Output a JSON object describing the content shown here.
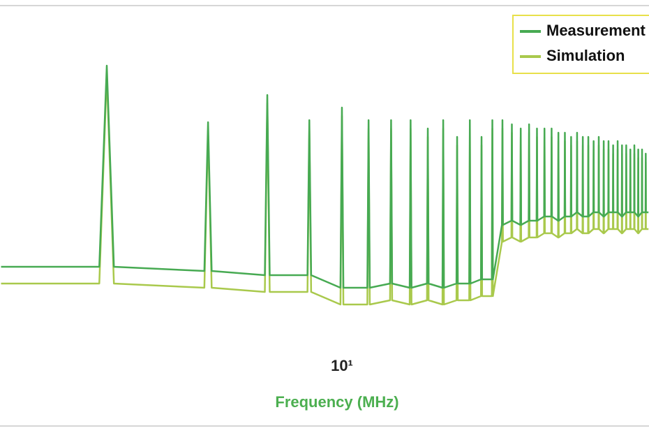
{
  "chart_data": {
    "type": "line",
    "xlabel": "Frequency (MHz)",
    "xscale": "log",
    "xlim": [
      0.963,
      81.8
    ],
    "xticks": [
      {
        "value": 10,
        "label": "10¹"
      }
    ],
    "ylim": [
      0,
      100
    ],
    "legend": "upper right",
    "x": [
      0.97,
      1.9,
      2,
      2.1,
      3.9,
      4,
      4.1,
      5.9,
      6,
      6.1,
      7.9,
      8,
      8.1,
      9.9,
      10,
      10.1,
      11.9,
      12,
      12.1,
      13.9,
      14,
      14.1,
      15.9,
      16,
      16.1,
      17.9,
      18,
      18.1,
      19.9,
      20,
      20.1,
      21.9,
      22,
      22.1,
      23.9,
      24,
      24.1,
      25.9,
      26,
      26.1,
      27.9,
      28,
      28.1,
      29.9,
      30,
      30.1,
      31.9,
      32,
      32.1,
      33.9,
      34,
      34.1,
      35.9,
      36,
      36.1,
      37.9,
      38,
      38.1,
      39.9,
      40,
      40.1,
      41.9,
      42,
      42.1,
      43.9,
      44,
      44.1,
      45.9,
      46,
      46.1,
      47.9,
      48,
      48.1,
      49.9,
      50,
      50.1,
      51.9,
      52,
      52.1,
      53.9,
      54,
      54.1,
      55.9,
      56,
      56.1,
      57.9,
      58,
      58.1,
      59.9,
      60,
      60.1,
      61.9,
      62,
      62.1,
      63.9,
      64,
      64.1,
      65.9,
      66,
      66.1,
      67.9,
      68,
      68.1,
      69.9,
      70,
      70.1,
      71.9,
      72,
      72.1,
      73.9,
      74,
      74.1,
      75.9,
      76,
      76.1,
      77.9,
      78,
      78.1,
      79.9,
      80,
      80.1,
      81.5
    ],
    "series": [
      {
        "name": "Measurement",
        "color": "#47aa52",
        "values": [
          38,
          38,
          86,
          38,
          37,
          72.5,
          37,
          36,
          79,
          36,
          36,
          73,
          36,
          33,
          76,
          33,
          33,
          73,
          33,
          34,
          73,
          34,
          33,
          73,
          33,
          34,
          71,
          34,
          33,
          73,
          33,
          34,
          69,
          34,
          34,
          73,
          34,
          35,
          69,
          35,
          35,
          73,
          35,
          48,
          73,
          48,
          49,
          72,
          49,
          48,
          71,
          48,
          49,
          72,
          49,
          49,
          71,
          49,
          50,
          71,
          50,
          50,
          71,
          50,
          49,
          70,
          49,
          50,
          70,
          50,
          50,
          69,
          50,
          51,
          70,
          51,
          50,
          69,
          50,
          50,
          69,
          50,
          51,
          68,
          51,
          51,
          69,
          51,
          50,
          68,
          50,
          51,
          68,
          51,
          51,
          67,
          51,
          51,
          68,
          51,
          50,
          67,
          50,
          51,
          67,
          51,
          51,
          66,
          51,
          51,
          67,
          51,
          50,
          66,
          50,
          51,
          66,
          51,
          51,
          65,
          51,
          51
        ]
      },
      {
        "name": "Simulation",
        "color": "#a9c94c",
        "values": [
          34,
          34,
          84,
          34,
          33,
          70.5,
          33,
          32,
          77,
          32,
          32,
          71,
          32,
          29,
          74,
          29,
          29,
          71,
          29,
          30,
          71,
          30,
          29,
          71,
          29,
          30,
          69,
          30,
          29,
          71,
          29,
          30,
          67,
          30,
          30,
          71,
          30,
          31,
          67,
          31,
          31,
          71,
          31,
          44,
          71,
          44,
          45,
          70,
          45,
          44,
          69,
          44,
          45,
          70,
          45,
          45,
          69,
          45,
          46,
          69,
          46,
          46,
          69,
          46,
          45,
          68,
          45,
          46,
          68,
          46,
          46,
          67,
          46,
          47,
          68,
          47,
          46,
          67,
          46,
          46,
          67,
          46,
          47,
          66,
          47,
          47,
          67,
          47,
          46,
          66,
          46,
          47,
          66,
          47,
          47,
          65,
          47,
          47,
          66,
          47,
          46,
          65,
          46,
          47,
          65,
          47,
          47,
          64,
          47,
          47,
          65,
          47,
          46,
          64,
          46,
          47,
          64,
          47,
          47,
          63,
          47,
          47
        ]
      }
    ]
  }
}
